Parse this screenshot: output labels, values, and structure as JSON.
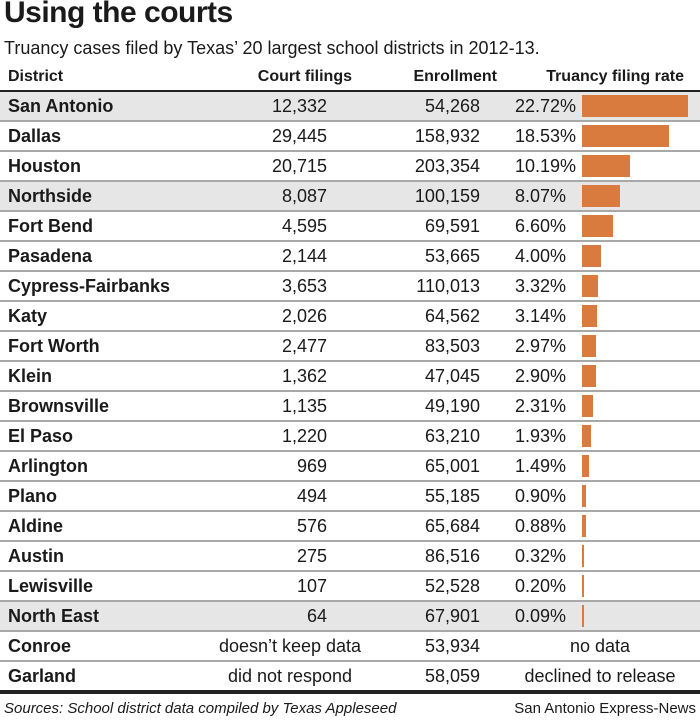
{
  "title": "Using the courts",
  "subtitle": "Truancy cases filed by Texas’ 20 largest school districts in 2012-13.",
  "footer": {
    "sources": "Sources: School district data compiled by Texas Appleseed",
    "credit": "San Antonio Express-News"
  },
  "colors": {
    "bar": "#d97a3e",
    "shade": "#e6e6e6"
  },
  "chart_data": {
    "type": "table",
    "columns": [
      "District",
      "Court filings",
      "Enrollment",
      "Truancy filing rate"
    ],
    "rows": [
      {
        "district": "San Antonio",
        "filings": "12,332",
        "enrollment": "54,268",
        "rate_label": "22.72%",
        "rate": 22.72,
        "shaded": true
      },
      {
        "district": "Dallas",
        "filings": "29,445",
        "enrollment": "158,932",
        "rate_label": "18.53%",
        "rate": 18.53
      },
      {
        "district": "Houston",
        "filings": "20,715",
        "enrollment": "203,354",
        "rate_label": "10.19%",
        "rate": 10.19
      },
      {
        "district": "Northside",
        "filings": "8,087",
        "enrollment": "100,159",
        "rate_label": "8.07%",
        "rate": 8.07,
        "shaded": true
      },
      {
        "district": "Fort Bend",
        "filings": "4,595",
        "enrollment": "69,591",
        "rate_label": "6.60%",
        "rate": 6.6
      },
      {
        "district": "Pasadena",
        "filings": "2,144",
        "enrollment": "53,665",
        "rate_label": "4.00%",
        "rate": 4.0
      },
      {
        "district": "Cypress-Fairbanks",
        "filings": "3,653",
        "enrollment": "110,013",
        "rate_label": "3.32%",
        "rate": 3.32
      },
      {
        "district": "Katy",
        "filings": "2,026",
        "enrollment": "64,562",
        "rate_label": "3.14%",
        "rate": 3.14
      },
      {
        "district": "Fort Worth",
        "filings": "2,477",
        "enrollment": "83,503",
        "rate_label": "2.97%",
        "rate": 2.97
      },
      {
        "district": "Klein",
        "filings": "1,362",
        "enrollment": "47,045",
        "rate_label": "2.90%",
        "rate": 2.9
      },
      {
        "district": "Brownsville",
        "filings": "1,135",
        "enrollment": "49,190",
        "rate_label": "2.31%",
        "rate": 2.31
      },
      {
        "district": "El Paso",
        "filings": "1,220",
        "enrollment": "63,210",
        "rate_label": "1.93%",
        "rate": 1.93
      },
      {
        "district": "Arlington",
        "filings": "969",
        "enrollment": "65,001",
        "rate_label": "1.49%",
        "rate": 1.49
      },
      {
        "district": "Plano",
        "filings": "494",
        "enrollment": "55,185",
        "rate_label": "0.90%",
        "rate": 0.9
      },
      {
        "district": "Aldine",
        "filings": "576",
        "enrollment": "65,684",
        "rate_label": "0.88%",
        "rate": 0.88
      },
      {
        "district": "Austin",
        "filings": "275",
        "enrollment": "86,516",
        "rate_label": "0.32%",
        "rate": 0.32
      },
      {
        "district": "Lewisville",
        "filings": "107",
        "enrollment": "52,528",
        "rate_label": "0.20%",
        "rate": 0.2
      },
      {
        "district": "North East",
        "filings": "64",
        "enrollment": "67,901",
        "rate_label": "0.09%",
        "rate": 0.09,
        "shaded": true
      },
      {
        "district": "Conroe",
        "filings": "doesn’t keep data",
        "enrollment": "53,934",
        "rate_label": "no data",
        "rate": null
      },
      {
        "district": "Garland",
        "filings": "did not respond",
        "enrollment": "58,059",
        "rate_label": "declined to release",
        "rate": null
      }
    ]
  }
}
